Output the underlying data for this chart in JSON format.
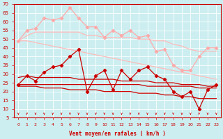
{
  "xlabel": "Vent moyen/en rafales ( km/h )",
  "background_color": "#cceef0",
  "grid_color": "#aadddd",
  "x": [
    0,
    1,
    2,
    3,
    4,
    5,
    6,
    7,
    8,
    9,
    10,
    11,
    12,
    13,
    14,
    15,
    16,
    17,
    18,
    19,
    20,
    21,
    22,
    23
  ],
  "line_rafales": [
    49,
    55,
    56,
    62,
    61,
    62,
    68,
    62,
    57,
    57,
    51,
    55,
    52,
    55,
    51,
    52,
    43,
    44,
    35,
    32,
    32,
    40,
    45,
    45
  ],
  "line_pink_upper": [
    49,
    52,
    54,
    54,
    54,
    54,
    54,
    54,
    52,
    52,
    51,
    51,
    51,
    51,
    50,
    50,
    49,
    49,
    47,
    46,
    44,
    43,
    43,
    43
  ],
  "line_pink_lower": [
    49,
    49,
    48,
    47,
    46,
    45,
    44,
    43,
    42,
    41,
    40,
    39,
    38,
    37,
    36,
    35,
    34,
    33,
    32,
    31,
    30,
    29,
    28,
    27
  ],
  "line_vent": [
    24,
    29,
    26,
    31,
    34,
    35,
    40,
    44,
    20,
    29,
    32,
    21,
    32,
    27,
    32,
    34,
    29,
    27,
    20,
    17,
    20,
    10,
    21,
    24
  ],
  "line_red_upper": [
    28,
    29,
    28,
    28,
    28,
    28,
    28,
    27,
    27,
    27,
    27,
    27,
    26,
    26,
    26,
    26,
    25,
    25,
    25,
    24,
    24,
    24,
    23,
    23
  ],
  "line_red_mid": [
    24,
    24,
    24,
    24,
    24,
    24,
    24,
    24,
    24,
    24,
    24,
    24,
    24,
    24,
    24,
    23,
    23,
    23,
    23,
    23,
    23,
    22,
    22,
    22
  ],
  "line_red_lower": [
    23,
    23,
    23,
    22,
    22,
    22,
    21,
    21,
    21,
    21,
    20,
    20,
    20,
    20,
    19,
    19,
    19,
    18,
    18,
    17,
    17,
    16,
    16,
    16
  ],
  "color_rafales": "#ffaaaa",
  "color_pink": "#ffbbbb",
  "color_vent": "#cc0000",
  "color_red": "#cc0000",
  "ylim": [
    5,
    70
  ],
  "yticks": [
    5,
    10,
    15,
    20,
    25,
    30,
    35,
    40,
    45,
    50,
    55,
    60,
    65,
    70
  ],
  "xticks": [
    0,
    1,
    2,
    3,
    4,
    5,
    6,
    7,
    8,
    9,
    10,
    11,
    12,
    13,
    14,
    15,
    16,
    17,
    18,
    19,
    20,
    21,
    22,
    23
  ]
}
